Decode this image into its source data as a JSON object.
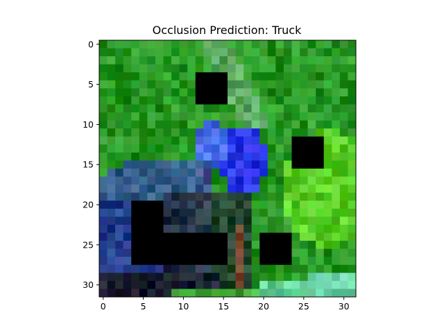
{
  "title": "Occlusion Prediction: Truck",
  "image": {
    "grid_size": 32,
    "description": "32x32 pixelated photo of a blue bird among green foliage with black occlusion squares",
    "occlusion_boxes": [
      {
        "col": 12,
        "row": 4,
        "w": 4,
        "h": 4
      },
      {
        "col": 24,
        "row": 12,
        "w": 4,
        "h": 4
      },
      {
        "col": 4,
        "row": 20,
        "w": 4,
        "h": 8
      },
      {
        "col": 8,
        "row": 24,
        "w": 8,
        "h": 4
      },
      {
        "col": 20,
        "row": 24,
        "w": 4,
        "h": 4
      }
    ]
  },
  "axes": {
    "x_ticks": [
      0,
      5,
      10,
      15,
      20,
      25,
      30
    ],
    "y_ticks": [
      0,
      5,
      10,
      15,
      20,
      25,
      30
    ]
  }
}
